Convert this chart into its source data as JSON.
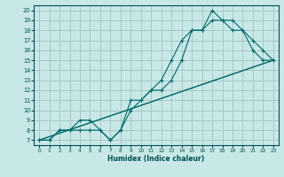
{
  "xlabel": "Humidex (Indice chaleur)",
  "background_color": "#c8e8e8",
  "grid_color": "#a8c8c8",
  "line_color": "#006868",
  "xlim": [
    -0.5,
    23.5
  ],
  "ylim": [
    6.5,
    20.5
  ],
  "xticks": [
    0,
    1,
    2,
    3,
    4,
    5,
    6,
    7,
    8,
    9,
    10,
    11,
    12,
    13,
    14,
    15,
    16,
    17,
    18,
    19,
    20,
    21,
    22,
    23
  ],
  "yticks": [
    7,
    8,
    9,
    10,
    11,
    12,
    13,
    14,
    15,
    16,
    17,
    18,
    19,
    20
  ],
  "line1_x": [
    0,
    1,
    2,
    3,
    4,
    5,
    6,
    7,
    8,
    9,
    10,
    11,
    12,
    13,
    14,
    15,
    16,
    17,
    18,
    19,
    20,
    21,
    22,
    23
  ],
  "line1_y": [
    7,
    7,
    8,
    8,
    8,
    8,
    8,
    7,
    8,
    11,
    11,
    12,
    13,
    15,
    17,
    18,
    18,
    20,
    19,
    19,
    18,
    16,
    15,
    15
  ],
  "line2_x": [
    0,
    1,
    2,
    3,
    4,
    5,
    6,
    7,
    8,
    9,
    10,
    11,
    12,
    13,
    14,
    15,
    16,
    17,
    18,
    19,
    20,
    21,
    22,
    23
  ],
  "line2_y": [
    7,
    7,
    8,
    8,
    9,
    9,
    8,
    7,
    8,
    10,
    11,
    12,
    12,
    13,
    15,
    18,
    18,
    19,
    19,
    18,
    18,
    17,
    16,
    15
  ],
  "line3_x": [
    0,
    23
  ],
  "line3_y": [
    7,
    15
  ],
  "line4_x": [
    0,
    23
  ],
  "line4_y": [
    7,
    15
  ]
}
